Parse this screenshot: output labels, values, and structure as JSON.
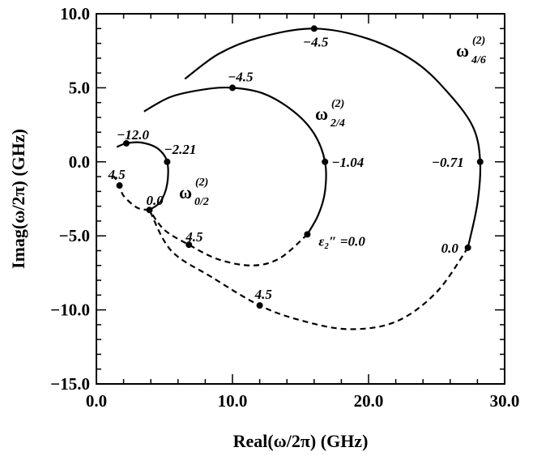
{
  "chart_data": {
    "type": "line",
    "xlabel": "Real(ω/2π) (GHz)",
    "ylabel": "Imag(ω/2π) (GHz)",
    "xlim": [
      0,
      30
    ],
    "ylim": [
      -15,
      10
    ],
    "x_ticks": [
      "0.0",
      "10.0",
      "20.0",
      "30.0"
    ],
    "y_ticks": [
      "10.0",
      "5.0",
      "0.0",
      "−5.0",
      "−10.0",
      "−15.0"
    ],
    "grid": false,
    "series": [
      {
        "name_main": "ω",
        "name_sup": "(2)",
        "name_sub": "0/2",
        "solid": [
          [
            1.5,
            1.0
          ],
          [
            2.2,
            1.25
          ],
          [
            3.3,
            1.3
          ],
          [
            4.5,
            0.9
          ],
          [
            5.2,
            0.0
          ],
          [
            5.2,
            -1.5
          ],
          [
            4.7,
            -2.7
          ],
          [
            3.9,
            -3.25
          ]
        ],
        "dashed": [
          [
            3.9,
            -3.25
          ],
          [
            3.0,
            -3.1
          ],
          [
            2.0,
            -2.3
          ],
          [
            1.7,
            -1.6
          ],
          [
            1.3,
            -1.0
          ]
        ],
        "points": [
          {
            "x": 2.2,
            "y": 1.25,
            "label": "−12.0"
          },
          {
            "x": 5.2,
            "y": 0.0,
            "label": "−2.21"
          },
          {
            "x": 3.9,
            "y": -3.25,
            "label": "0.0"
          },
          {
            "x": 1.7,
            "y": -1.6,
            "label": "4.5"
          }
        ]
      },
      {
        "name_main": "ω",
        "name_sup": "(2)",
        "name_sub": "2/4",
        "solid": [
          [
            3.5,
            3.4
          ],
          [
            5.5,
            4.4
          ],
          [
            8.0,
            4.9
          ],
          [
            10.0,
            5.0
          ],
          [
            12.3,
            4.6
          ],
          [
            14.5,
            3.4
          ],
          [
            16.0,
            1.9
          ],
          [
            16.8,
            0.0
          ],
          [
            16.8,
            -2.0
          ],
          [
            16.3,
            -3.6
          ],
          [
            15.5,
            -4.9
          ]
        ],
        "dashed": [
          [
            15.5,
            -4.9
          ],
          [
            13.5,
            -6.5
          ],
          [
            11.5,
            -7.0
          ],
          [
            9.0,
            -6.6
          ],
          [
            6.8,
            -5.6
          ],
          [
            5.0,
            -4.6
          ],
          [
            3.9,
            -3.25
          ]
        ],
        "points": [
          {
            "x": 10.0,
            "y": 5.0,
            "label": "−4.5"
          },
          {
            "x": 16.8,
            "y": 0.0,
            "label": "−1.04"
          },
          {
            "x": 15.5,
            "y": -4.9,
            "label": "ε₂″ =0.0"
          },
          {
            "x": 6.8,
            "y": -5.6,
            "label": "4.5"
          }
        ]
      },
      {
        "name_main": "ω",
        "name_sup": "(2)",
        "name_sub": "4/6",
        "solid": [
          [
            6.5,
            5.6
          ],
          [
            9.0,
            7.3
          ],
          [
            12.0,
            8.4
          ],
          [
            16.0,
            9.0
          ],
          [
            20.0,
            8.3
          ],
          [
            23.5,
            6.7
          ],
          [
            26.0,
            4.5
          ],
          [
            27.7,
            2.3
          ],
          [
            28.2,
            0.0
          ],
          [
            28.0,
            -2.8
          ],
          [
            27.3,
            -5.8
          ]
        ],
        "dashed": [
          [
            27.3,
            -5.8
          ],
          [
            25.0,
            -8.8
          ],
          [
            22.0,
            -10.8
          ],
          [
            18.5,
            -11.3
          ],
          [
            15.0,
            -10.7
          ],
          [
            12.0,
            -9.7
          ],
          [
            8.5,
            -7.8
          ],
          [
            5.5,
            -6.0
          ],
          [
            3.9,
            -3.25
          ]
        ],
        "points": [
          {
            "x": 16.0,
            "y": 9.0,
            "label": "−4.5"
          },
          {
            "x": 28.2,
            "y": 0.0,
            "label": "−0.71"
          },
          {
            "x": 27.3,
            "y": -5.8,
            "label": "0.0"
          },
          {
            "x": 12.0,
            "y": -9.7,
            "label": "4.5"
          }
        ]
      }
    ]
  }
}
